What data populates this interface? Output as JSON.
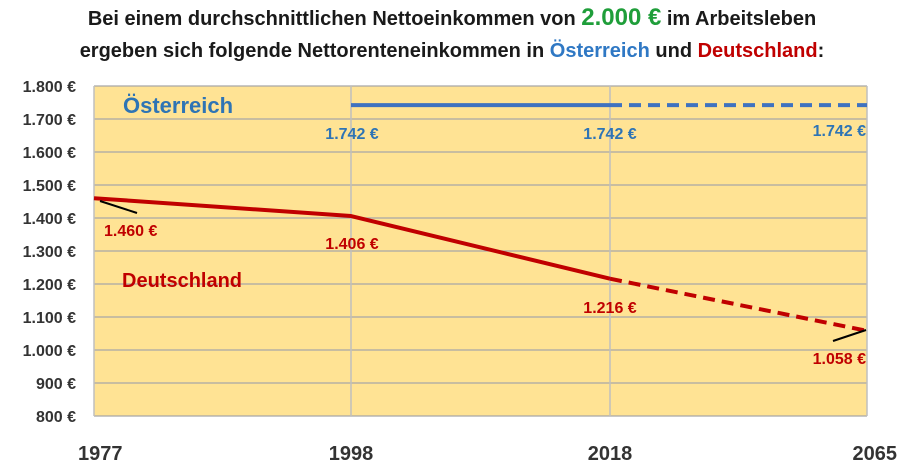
{
  "title": {
    "line1_a": "Bei einem durchschnittlichen Nettoeinkommen von ",
    "line1_amount": "2.000 €",
    "line1_b": " im Arbeitsleben",
    "line2_a": "ergeben sich folgende Nettorenteneinkommen in ",
    "line2_at": "Österreich",
    "line2_und": " und ",
    "line2_de": "Deutschland",
    "line2_colon": ":"
  },
  "colors": {
    "plot_bg": "#ffe394",
    "grid": "#a6a6a6",
    "austria": "#3f72c0",
    "germany": "#c00000"
  },
  "chart_data": {
    "type": "line",
    "x_ticks": [
      "1977",
      "1998",
      "2018",
      "2065"
    ],
    "y_ticks": [
      "800 €",
      "900 €",
      "1.000 €",
      "1.100 €",
      "1.200 €",
      "1.300 €",
      "1.400 €",
      "1.500 €",
      "1.600 €",
      "1.700 €",
      "1.800 €"
    ],
    "ylim": [
      800,
      1800
    ],
    "grid": true,
    "series": [
      {
        "name": "Österreich",
        "points": [
          {
            "x": "1998",
            "y": 1742,
            "label": "1.742 €"
          },
          {
            "x": "2018",
            "y": 1742,
            "label": "1.742 €"
          },
          {
            "x": "2065",
            "y": 1742,
            "label": "1.742 €"
          }
        ],
        "solid_until": "2018",
        "dashed_after": "2018"
      },
      {
        "name": "Deutschland",
        "points": [
          {
            "x": "1977",
            "y": 1460,
            "label": "1.460 €"
          },
          {
            "x": "1998",
            "y": 1406,
            "label": "1.406 €"
          },
          {
            "x": "2018",
            "y": 1216,
            "label": "1.216 €"
          },
          {
            "x": "2065",
            "y": 1058,
            "label": "1.058 €"
          }
        ],
        "solid_until": "2018",
        "dashed_after": "2018"
      }
    ]
  }
}
